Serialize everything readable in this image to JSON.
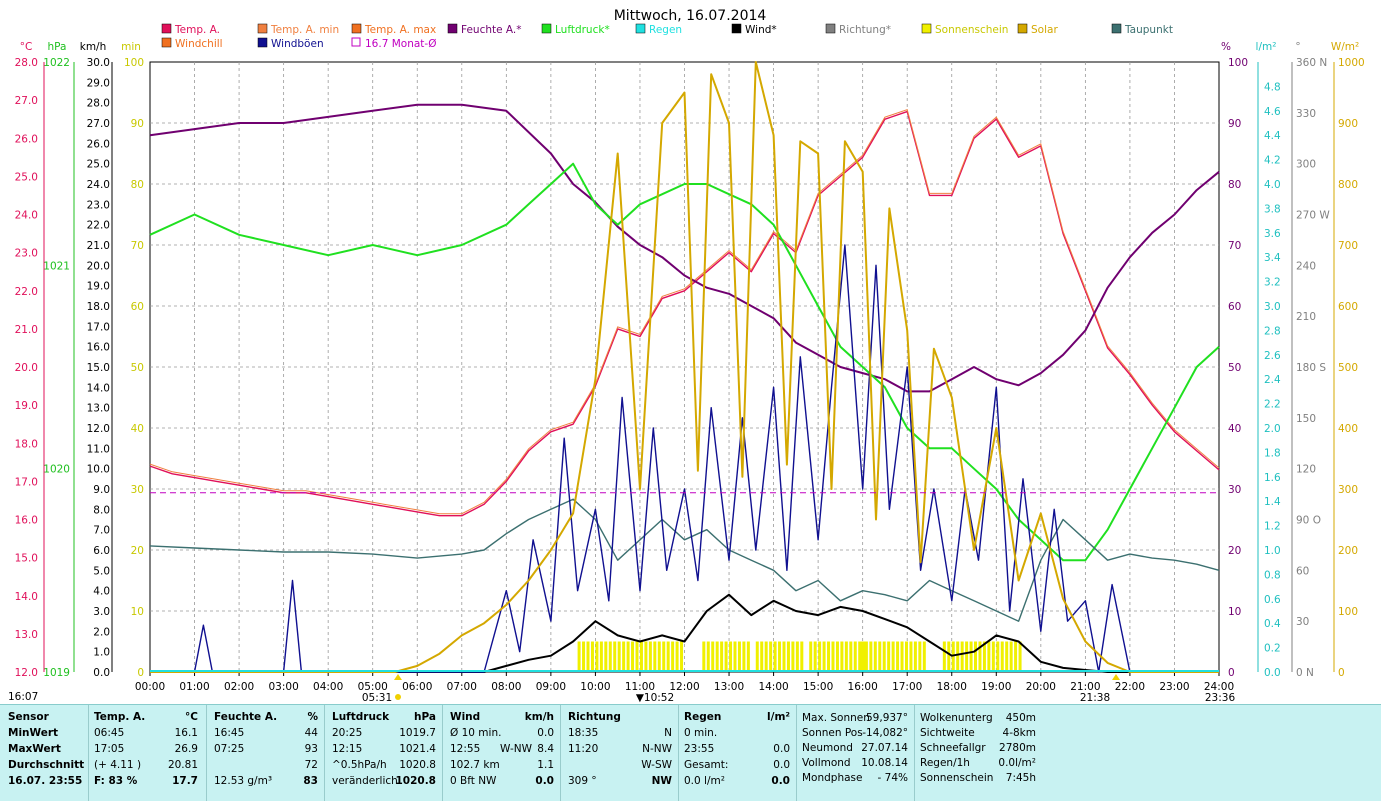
{
  "title": "Mittwoch, 16.07.2014",
  "legend": [
    {
      "label": "Temp. A.",
      "color": "#e0105a"
    },
    {
      "label": "Temp. A. min",
      "color": "#f08040"
    },
    {
      "label": "Temp. A. max",
      "color": "#f07020"
    },
    {
      "label": "Feuchte A.*",
      "color": "#700070"
    },
    {
      "label": "Luftdruck*",
      "color": "#20e020"
    },
    {
      "label": "Regen",
      "color": "#20e0e0"
    },
    {
      "label": "Wind*",
      "color": "#000000"
    },
    {
      "label": "Richtung*",
      "color": "#808080"
    },
    {
      "label": "Sonnenschein",
      "color": "#f0f000"
    },
    {
      "label": "Solar",
      "color": "#d4a800"
    },
    {
      "label": "Taupunkt",
      "color": "#3c7070"
    },
    {
      "label": "Windchill",
      "color": "#f07020"
    },
    {
      "label": "Windböen",
      "color": "#101090"
    },
    {
      "label": "16.7 Monat-Ø",
      "color": "#c000c0"
    }
  ],
  "axis_units": {
    "temp": "°C",
    "pressure": "hPa",
    "wind": "km/h",
    "sun": "min",
    "humidity": "%",
    "rain": "l/m²",
    "direction": "°",
    "solar": "W/m²"
  },
  "chart_data": {
    "type": "line",
    "title": "Mittwoch, 16.07.2014",
    "x_ticks": [
      "00:00",
      "01:00",
      "02:00",
      "03:00",
      "04:00",
      "05:00",
      "06:00",
      "07:00",
      "08:00",
      "09:00",
      "10:00",
      "11:00",
      "12:00",
      "13:00",
      "14:00",
      "15:00",
      "16:00",
      "17:00",
      "18:00",
      "19:00",
      "20:00",
      "21:00",
      "22:00",
      "23:00",
      "24:00"
    ],
    "x_range": [
      0,
      24
    ],
    "axes": {
      "temp": {
        "unit": "°C",
        "range": [
          12,
          28
        ],
        "ticks": [
          "28.0",
          "27.0",
          "26.0",
          "25.0",
          "24.0",
          "23.0",
          "22.0",
          "21.0",
          "20.0",
          "19.0",
          "18.0",
          "17.0",
          "16.0",
          "15.0",
          "14.0",
          "13.0",
          "12.0"
        ]
      },
      "pressure": {
        "unit": "hPa",
        "range": [
          1019,
          1022
        ],
        "ticks": [
          "1022",
          "1021",
          "1020",
          "1019"
        ]
      },
      "wind": {
        "unit": "km/h",
        "range": [
          0,
          30
        ],
        "ticks": [
          "30.0",
          "29.0",
          "28.0",
          "27.0",
          "26.0",
          "25.0",
          "24.0",
          "23.0",
          "22.0",
          "21.0",
          "20.0",
          "19.0",
          "18.0",
          "17.0",
          "16.0",
          "15.0",
          "14.0",
          "13.0",
          "12.0",
          "11.0",
          "10.0",
          "9.0",
          "8.0",
          "7.0",
          "6.0",
          "5.0",
          "4.0",
          "3.0",
          "2.0",
          "1.0",
          "0.0"
        ]
      },
      "sun": {
        "unit": "min",
        "range": [
          0,
          100
        ],
        "ticks": [
          "100",
          "90",
          "80",
          "70",
          "60",
          "50",
          "40",
          "30",
          "20",
          "10",
          "0"
        ]
      },
      "humidity": {
        "unit": "%",
        "range": [
          0,
          100
        ],
        "ticks": [
          "100",
          "90",
          "80",
          "70",
          "60",
          "50",
          "40",
          "30",
          "20",
          "10",
          "0"
        ]
      },
      "rain": {
        "unit": "l/m²",
        "range": [
          0,
          5
        ],
        "ticks": [
          "4.8",
          "4.6",
          "4.4",
          "4.2",
          "4.0",
          "3.8",
          "3.6",
          "3.4",
          "3.2",
          "3.0",
          "2.8",
          "2.6",
          "2.4",
          "2.2",
          "2.0",
          "1.8",
          "1.6",
          "1.4",
          "1.2",
          "1.0",
          "0.8",
          "0.6",
          "0.4",
          "0.2",
          "0.0"
        ]
      },
      "direction": {
        "unit": "°",
        "range": [
          0,
          360
        ],
        "ticks": [
          "360 N",
          "330",
          "300",
          "270 W",
          "240",
          "210",
          "180 S",
          "150",
          "120",
          "90 O",
          "60",
          "30",
          "0 N"
        ]
      },
      "solar": {
        "unit": "W/m²",
        "range": [
          0,
          1000
        ],
        "ticks": [
          "1000",
          "900",
          "800",
          "700",
          "600",
          "500",
          "400",
          "300",
          "200",
          "100",
          "0"
        ]
      }
    },
    "series": [
      {
        "name": "Temp. A.",
        "axis": "temp",
        "color": "#e0105a",
        "x": [
          0,
          0.5,
          1,
          1.5,
          2,
          2.5,
          3,
          3.5,
          4,
          4.5,
          5,
          5.5,
          6,
          6.5,
          7,
          7.5,
          8,
          8.5,
          9,
          9.5,
          10,
          10.5,
          11,
          11.5,
          12,
          12.5,
          13,
          13.5,
          14,
          14.5,
          15,
          15.5,
          16,
          16.5,
          17,
          17.5,
          18,
          18.5,
          19,
          19.5,
          20,
          20.5,
          21,
          21.5,
          22,
          22.5,
          23,
          23.5,
          24
        ],
        "y": [
          17.4,
          17.2,
          17.1,
          17.0,
          16.9,
          16.8,
          16.7,
          16.7,
          16.6,
          16.5,
          16.4,
          16.3,
          16.2,
          16.1,
          16.1,
          16.4,
          17.0,
          17.8,
          18.3,
          18.5,
          19.5,
          21.0,
          20.8,
          21.8,
          22.0,
          22.5,
          23.0,
          22.5,
          23.5,
          23.0,
          24.5,
          25.0,
          25.5,
          26.5,
          26.7,
          24.5,
          24.5,
          26.0,
          26.5,
          25.5,
          25.8,
          23.5,
          22.0,
          20.5,
          19.8,
          19.0,
          18.3,
          17.8,
          17.3
        ]
      },
      {
        "name": "Feuchte A.*",
        "axis": "humidity",
        "color": "#700070",
        "x": [
          0,
          1,
          2,
          3,
          4,
          5,
          6,
          7,
          8,
          9,
          9.5,
          10,
          10.5,
          11,
          11.5,
          12,
          12.5,
          13,
          13.5,
          14,
          14.5,
          15,
          15.5,
          16,
          16.5,
          17,
          17.5,
          18,
          18.5,
          19,
          19.5,
          20,
          20.5,
          21,
          21.5,
          22,
          22.5,
          23,
          23.5,
          24
        ],
        "y": [
          88,
          89,
          90,
          90,
          91,
          92,
          93,
          93,
          92,
          85,
          80,
          77,
          73,
          70,
          68,
          65,
          63,
          62,
          60,
          58,
          54,
          52,
          50,
          49,
          48,
          46,
          46,
          48,
          50,
          48,
          47,
          49,
          52,
          56,
          63,
          68,
          72,
          75,
          79,
          82
        ]
      },
      {
        "name": "Luftdruck*",
        "axis": "pressure",
        "color": "#20e020",
        "x": [
          0,
          1,
          2,
          3,
          4,
          5,
          6,
          7,
          8,
          8.5,
          9,
          9.5,
          10,
          10.5,
          11,
          11.5,
          12,
          12.5,
          13,
          13.5,
          14,
          14.5,
          15,
          15.5,
          16,
          16.5,
          17,
          17.5,
          18,
          18.5,
          19,
          19.5,
          20,
          20.5,
          21,
          21.5,
          22,
          22.5,
          23,
          23.5,
          24
        ],
        "y": [
          1021.15,
          1021.25,
          1021.15,
          1021.1,
          1021.05,
          1021.1,
          1021.05,
          1021.1,
          1021.2,
          1021.3,
          1021.4,
          1021.5,
          1021.3,
          1021.2,
          1021.3,
          1021.35,
          1021.4,
          1021.4,
          1021.35,
          1021.3,
          1021.2,
          1021.0,
          1020.8,
          1020.6,
          1020.5,
          1020.4,
          1020.2,
          1020.1,
          1020.1,
          1020.0,
          1019.9,
          1019.75,
          1019.65,
          1019.55,
          1019.55,
          1019.7,
          1019.9,
          1020.1,
          1020.3,
          1020.5,
          1020.6
        ]
      },
      {
        "name": "Taupunkt",
        "axis": "wind",
        "color": "#3c7070",
        "x": [
          0,
          1,
          2,
          3,
          4,
          5,
          6,
          7,
          7.5,
          8,
          8.5,
          9,
          9.5,
          10,
          10.5,
          11,
          11.5,
          12,
          12.5,
          13,
          13.5,
          14,
          14.5,
          15,
          15.5,
          16,
          16.5,
          17,
          17.5,
          18,
          18.5,
          19,
          19.5,
          20,
          20.5,
          21,
          21.5,
          22,
          22.5,
          23,
          23.5,
          24
        ],
        "y": [
          6.2,
          6.1,
          6.0,
          5.9,
          5.9,
          5.8,
          5.6,
          5.8,
          6.0,
          6.8,
          7.5,
          8.0,
          8.5,
          7.5,
          5.5,
          6.5,
          7.5,
          6.5,
          7.0,
          6.0,
          5.5,
          5.0,
          4.0,
          4.5,
          3.5,
          4.0,
          3.8,
          3.5,
          4.5,
          4.0,
          3.5,
          3.0,
          2.5,
          5.5,
          7.5,
          6.5,
          5.5,
          5.8,
          5.6,
          5.5,
          5.3,
          5.0
        ]
      },
      {
        "name": "Wind*",
        "axis": "wind",
        "color": "#000000",
        "x": [
          0,
          7.5,
          8,
          8.5,
          9,
          9.5,
          10,
          10.5,
          11,
          11.5,
          12,
          12.5,
          13,
          13.5,
          14,
          14.5,
          15,
          15.5,
          16,
          16.5,
          17,
          17.5,
          18,
          18.5,
          19,
          19.5,
          20,
          20.5,
          21,
          21.5,
          24
        ],
        "y": [
          0,
          0,
          0.3,
          0.6,
          0.8,
          1.5,
          2.5,
          1.8,
          1.5,
          1.8,
          1.5,
          3.0,
          3.8,
          2.8,
          3.5,
          3.0,
          2.8,
          3.2,
          3.0,
          2.6,
          2.2,
          1.5,
          0.8,
          1.0,
          1.8,
          1.5,
          0.5,
          0.2,
          0.1,
          0,
          0
        ]
      },
      {
        "name": "Windböen",
        "axis": "wind",
        "color": "#101090",
        "x": [
          0,
          1,
          1.2,
          1.4,
          3,
          3.2,
          3.4,
          7.5,
          8,
          8.3,
          8.6,
          9,
          9.3,
          9.6,
          10,
          10.3,
          10.6,
          11,
          11.3,
          11.6,
          12,
          12.3,
          12.6,
          13,
          13.3,
          13.6,
          14,
          14.3,
          14.6,
          15,
          15.3,
          15.6,
          16,
          16.3,
          16.6,
          17,
          17.3,
          17.6,
          18,
          18.3,
          18.6,
          19,
          19.3,
          19.6,
          20,
          20.3,
          20.6,
          21,
          21.3,
          21.6,
          22,
          24
        ],
        "y": [
          0,
          0,
          2.3,
          0,
          0,
          4.5,
          0,
          0,
          4.0,
          1.0,
          6.5,
          2.5,
          11.5,
          4.0,
          8.0,
          3.5,
          13.5,
          4.0,
          12.0,
          5.0,
          9.0,
          4.5,
          13.0,
          5.5,
          12.5,
          6.0,
          14.0,
          5.0,
          15.5,
          6.5,
          14.0,
          21.0,
          9.0,
          20.0,
          8.0,
          15.0,
          5.0,
          9.0,
          3.5,
          9.0,
          5.5,
          14.0,
          3.0,
          9.5,
          2.0,
          8.0,
          2.5,
          3.5,
          0,
          4.3,
          0,
          0
        ]
      },
      {
        "name": "Solar",
        "axis": "solar",
        "color": "#d4a800",
        "x": [
          0,
          5.5,
          6,
          6.5,
          7,
          7.5,
          8,
          8.5,
          9,
          9.5,
          10,
          10.5,
          11,
          11.5,
          12,
          12.3,
          12.6,
          13,
          13.3,
          13.6,
          14,
          14.3,
          14.6,
          15,
          15.3,
          15.6,
          16,
          16.3,
          16.6,
          17,
          17.3,
          17.6,
          18,
          18.5,
          19,
          19.5,
          20,
          20.5,
          21,
          21.5,
          22,
          24
        ],
        "y": [
          0,
          0,
          10,
          30,
          60,
          80,
          110,
          150,
          200,
          260,
          480,
          850,
          300,
          900,
          950,
          330,
          980,
          900,
          320,
          1000,
          880,
          340,
          870,
          850,
          300,
          870,
          820,
          250,
          760,
          560,
          180,
          530,
          450,
          200,
          400,
          150,
          260,
          120,
          50,
          15,
          0,
          0
        ]
      },
      {
        "name": "16.7 Monat-Ø",
        "axis": "temp",
        "color": "#c000c0",
        "x": [
          0,
          24
        ],
        "y": [
          16.7,
          16.7
        ]
      }
    ],
    "sunshine_bars": {
      "name": "Sonnenschein",
      "axis": "sun",
      "color": "#f0f000",
      "ranges": [
        [
          9.6,
          11.9
        ],
        [
          12.4,
          13.4
        ],
        [
          13.6,
          14.1
        ],
        [
          14.2,
          14.6
        ],
        [
          14.8,
          16.0
        ],
        [
          15.95,
          17.4
        ],
        [
          17.8,
          19.6
        ]
      ],
      "value": 5
    },
    "sunrise_label": "05:31",
    "noon_label": "10:52",
    "sunset_label": "21:38",
    "moon_label": "23:36",
    "corner_label": "16:07"
  },
  "stats": {
    "sensor": {
      "header": "Sensor",
      "rows": [
        "MinWert",
        "MaxWert",
        "Durchschnitt",
        "16.07. 23:55"
      ]
    },
    "temp": {
      "header": "Temp. A.",
      "unit": "°C",
      "rows": [
        [
          "06:45",
          "16.1"
        ],
        [
          "17:05",
          "26.9"
        ],
        [
          "(+ 4.11 )",
          "20.81"
        ],
        [
          "F: 83 %",
          "17.7"
        ]
      ]
    },
    "humidity": {
      "header": "Feuchte A.",
      "unit": "%",
      "rows": [
        [
          "16:45",
          "44"
        ],
        [
          "07:25",
          "93"
        ],
        [
          "",
          "72"
        ],
        [
          "12.53 g/m³",
          "83"
        ]
      ]
    },
    "pressure": {
      "header": "Luftdruck",
      "unit": "hPa",
      "rows": [
        [
          "20:25",
          "1019.7"
        ],
        [
          "12:15",
          "1021.4"
        ],
        [
          "^0.5hPa/h",
          "1020.8"
        ],
        [
          "veränderlich",
          "1020.8"
        ]
      ]
    },
    "wind": {
      "header": "Wind",
      "unit": "km/h",
      "rows": [
        [
          "Ø 10 min.",
          "",
          "0.0"
        ],
        [
          "12:55",
          "W-NW",
          "8.4"
        ],
        [
          "102.7 km",
          "",
          "1.1"
        ],
        [
          "0 Bft NW",
          "",
          "0.0"
        ]
      ]
    },
    "direction": {
      "header": "Richtung",
      "rows": [
        [
          "18:35",
          "N"
        ],
        [
          "11:20",
          "N-NW"
        ],
        [
          "",
          "W-SW"
        ],
        [
          "309 °",
          "NW"
        ]
      ]
    },
    "rain": {
      "header": "Regen",
      "unit": "l/m²",
      "rows": [
        [
          "0 min.",
          ""
        ],
        [
          "23:55",
          "0.0"
        ],
        [
          "Gesamt:",
          "0.0"
        ],
        [
          "0.0 l/m²",
          "0.0"
        ]
      ]
    },
    "astro": {
      "rows": [
        [
          "Max. Sonnen",
          "59,937°"
        ],
        [
          "Sonnen Pos",
          "-14,082°"
        ],
        [
          "Neumond",
          "27.07.14"
        ],
        [
          "Vollmond",
          "10.08.14"
        ],
        [
          "Mondphase",
          "- 74%"
        ]
      ]
    },
    "misc": {
      "rows": [
        [
          "Wolkenunterg",
          "450m"
        ],
        [
          "Sichtweite",
          "4-8km"
        ],
        [
          "Schneefallgr",
          "2780m"
        ],
        [
          "Regen/1h",
          "0.0l/m²"
        ],
        [
          "Sonnenschein",
          "7:45h"
        ]
      ]
    }
  }
}
